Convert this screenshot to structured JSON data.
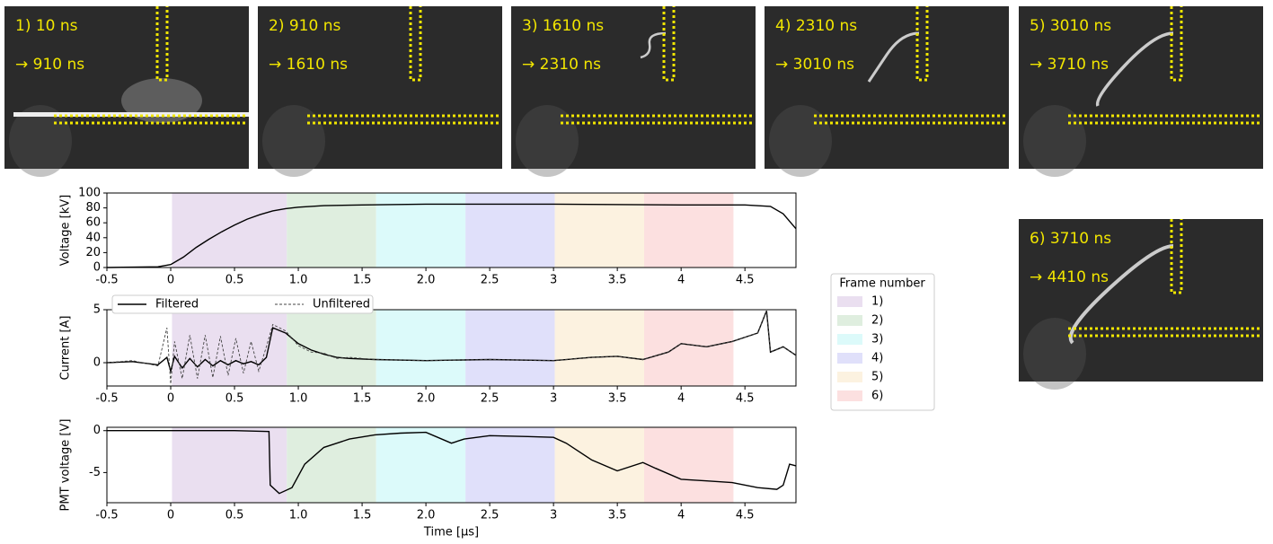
{
  "frames": [
    {
      "label": "1)  10 ns",
      "end": "→  910 ns"
    },
    {
      "label": "2)  910 ns",
      "end": "→  1610 ns"
    },
    {
      "label": "3)  1610 ns",
      "end": "→  2310 ns"
    },
    {
      "label": "4)  2310 ns",
      "end": "→  3010 ns"
    },
    {
      "label": "5)  3010 ns",
      "end": "→  3710 ns"
    },
    {
      "label": "6)  3710 ns",
      "end": "→  4410 ns"
    }
  ],
  "chart_data": [
    {
      "type": "line",
      "ylabel": "Voltage [kV]",
      "xlim": [
        -0.5,
        4.9
      ],
      "ylim": [
        0,
        100
      ],
      "xticks": [
        -0.5,
        0,
        0.5,
        {
          "value": 1,
          "label": "1.0"
        },
        1.5,
        {
          "value": 2,
          "label": "2.0"
        },
        2.5,
        3,
        3.5,
        4,
        4.5
      ],
      "yticks": [
        0,
        20,
        40,
        60,
        80,
        100
      ],
      "legend_title": "Frame number",
      "bands": [
        {
          "name": "1)",
          "color": "#eadff0",
          "start": 0.01,
          "end": 0.91
        },
        {
          "name": "2)",
          "color": "#dfeedf",
          "start": 0.91,
          "end": 1.61
        },
        {
          "name": "3)",
          "color": "#dcfafa",
          "start": 1.61,
          "end": 2.31
        },
        {
          "name": "4)",
          "color": "#e0e0fa",
          "start": 2.31,
          "end": 3.01
        },
        {
          "name": "5)",
          "color": "#fcf2e0",
          "start": 3.01,
          "end": 3.71
        },
        {
          "name": "6)",
          "color": "#fce0e0",
          "start": 3.71,
          "end": 4.41
        }
      ],
      "x": [
        -0.5,
        -0.1,
        0,
        0.1,
        0.2,
        0.3,
        0.4,
        0.5,
        0.6,
        0.7,
        0.8,
        0.9,
        1.0,
        1.2,
        1.5,
        2.0,
        3.0,
        4.0,
        4.5,
        4.7,
        4.8,
        4.9
      ],
      "series": [
        {
          "color": "#000000",
          "values": [
            0,
            1,
            4,
            14,
            27,
            38,
            48,
            57,
            65,
            71,
            76,
            79,
            81,
            83,
            84,
            85,
            85,
            84,
            84,
            82,
            72,
            52
          ]
        }
      ]
    },
    {
      "type": "line",
      "ylabel": "Current [A]",
      "xlim": [
        -0.5,
        4.9
      ],
      "ylim": [
        -2.2,
        5
      ],
      "xticks": [
        -0.5,
        0,
        0.5,
        {
          "value": 1,
          "label": "1.0"
        },
        1.5,
        {
          "value": 2,
          "label": "2.0"
        },
        2.5,
        3,
        3.5,
        4,
        4.5
      ],
      "yticks": [
        0,
        5
      ],
      "x": [
        -0.5,
        -0.3,
        -0.1,
        -0.03,
        0,
        0.03,
        0.09,
        0.15,
        0.21,
        0.27,
        0.33,
        0.39,
        0.45,
        0.51,
        0.57,
        0.63,
        0.69,
        0.75,
        0.8,
        0.9,
        1.0,
        1.1,
        1.2,
        1.3,
        1.4,
        1.6,
        2.0,
        2.5,
        3.0,
        3.3,
        3.5,
        3.7,
        3.9,
        4.0,
        4.2,
        4.4,
        4.6,
        4.67,
        4.7,
        4.8,
        4.9
      ],
      "series": [
        {
          "name": "Filtered",
          "color": "#000000",
          "dashed": false,
          "values": [
            0,
            0.1,
            -0.2,
            0.5,
            -0.8,
            0.6,
            -0.5,
            0.4,
            -0.4,
            0.3,
            -0.3,
            0.2,
            -0.2,
            0.2,
            -0.1,
            0.1,
            -0.2,
            0.5,
            3.3,
            2.8,
            1.8,
            1.2,
            0.8,
            0.5,
            0.4,
            0.3,
            0.2,
            0.3,
            0.2,
            0.5,
            0.6,
            0.3,
            1.0,
            1.8,
            1.5,
            2.0,
            2.8,
            4.9,
            1.0,
            1.5,
            0.7
          ]
        },
        {
          "name": "Unfiltered",
          "color": "#444444",
          "dashed": true,
          "values": [
            0,
            0.2,
            -0.3,
            3.3,
            -2.0,
            2.0,
            -1.5,
            2.6,
            -1.5,
            2.6,
            -1.4,
            2.5,
            -1.2,
            2.3,
            -1.0,
            2.0,
            -0.8,
            1.5,
            3.6,
            3.0,
            1.6,
            1.0,
            0.9,
            0.4,
            0.5,
            0.3,
            0.2,
            0.3,
            0.2,
            0.5,
            0.6,
            0.3,
            1.0,
            1.8,
            1.5,
            2.0,
            2.8,
            4.9,
            1.0,
            1.5,
            0.7
          ]
        }
      ]
    },
    {
      "type": "line",
      "ylabel": "PMT voltage [V]",
      "xlabel": "Time [μs]",
      "xlim": [
        -0.5,
        4.9
      ],
      "ylim": [
        -8.6,
        0.4
      ],
      "xticks": [
        -0.5,
        0,
        0.5,
        {
          "value": 1,
          "label": "1.0"
        },
        1.5,
        {
          "value": 2,
          "label": "2.0"
        },
        2.5,
        3,
        3.5,
        4,
        4.5
      ],
      "yticks": [
        -5,
        0
      ],
      "x": [
        -0.5,
        0,
        0.5,
        0.77,
        0.78,
        0.85,
        0.95,
        1.05,
        1.2,
        1.4,
        1.6,
        1.8,
        2.0,
        2.2,
        2.3,
        2.5,
        2.8,
        3.0,
        3.1,
        3.3,
        3.5,
        3.7,
        3.8,
        4.0,
        4.2,
        4.4,
        4.6,
        4.75,
        4.8,
        4.85,
        4.9
      ],
      "series": [
        {
          "color": "#000000",
          "values": [
            0,
            0,
            0,
            -0.1,
            -6.5,
            -7.5,
            -6.8,
            -4,
            -2,
            -1,
            -0.5,
            -0.3,
            -0.2,
            -1.5,
            -1,
            -0.6,
            -0.7,
            -0.8,
            -1.5,
            -3.5,
            -4.8,
            -3.8,
            -4.5,
            -5.8,
            -6,
            -6.2,
            -6.8,
            -7,
            -6.5,
            -4,
            -4.2
          ]
        }
      ]
    }
  ]
}
